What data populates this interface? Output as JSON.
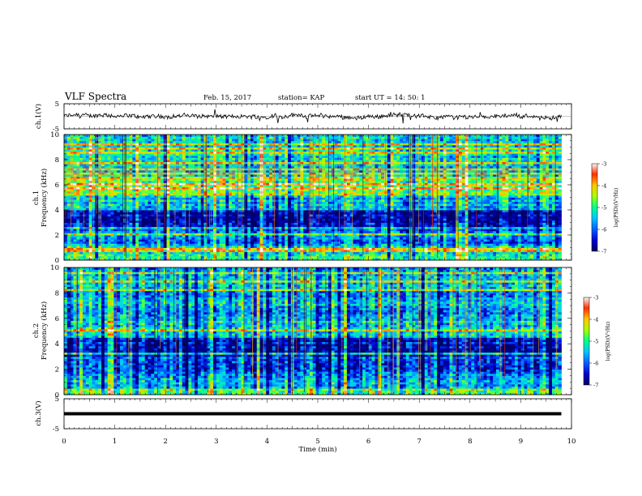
{
  "header": {
    "title": "VLF Spectra",
    "date": "Feb. 15, 2017",
    "station": "station= KAP",
    "start": "start  UT =   14: 50: 1"
  },
  "colors": {
    "ch1_trace": "#000000",
    "ch3_trace": "#000000",
    "colormap": [
      "#000066",
      "#0000d0",
      "#0060ff",
      "#00c8ff",
      "#00ff90",
      "#a8ff00",
      "#ffc800",
      "#ff3000",
      "#f8f8f8"
    ]
  },
  "chart_data": [
    {
      "type": "line",
      "name": "ch1",
      "ylabel": "ch.1(V)",
      "ylim": [
        -5,
        5
      ],
      "yticks": [
        -5,
        5
      ],
      "xlim": [
        0,
        10
      ],
      "x_extent": [
        0,
        9.8
      ],
      "approx_mean": 0,
      "approx_range": [
        -2,
        2
      ]
    },
    {
      "type": "heatmap",
      "name": "ch1 spectrum",
      "ylabel_line1": "ch.1",
      "ylabel_line2": "Frequency (kHz)",
      "ylim": [
        0,
        10
      ],
      "yticks": [
        0,
        2,
        4,
        6,
        8,
        10
      ],
      "xlim": [
        0,
        10
      ],
      "x_extent": [
        0,
        9.8
      ],
      "colorbar": {
        "label": "log(PSD)(V²/Hz)",
        "range": [
          -7,
          -3
        ],
        "ticks": [
          "-3",
          "-4",
          "-5",
          "-6",
          "-7"
        ]
      },
      "band_levels": [
        {
          "f": [
            0,
            0.3
          ],
          "level": 0.55
        },
        {
          "f": [
            0.3,
            1.2
          ],
          "level": 0.5
        },
        {
          "f": [
            1.2,
            2.5
          ],
          "level": 0.3
        },
        {
          "f": [
            2.5,
            4.0
          ],
          "level": 0.1
        },
        {
          "f": [
            4.0,
            5.2
          ],
          "level": 0.4
        },
        {
          "f": [
            5.2,
            6.5
          ],
          "level": 0.6
        },
        {
          "f": [
            6.5,
            10
          ],
          "level": 0.45
        }
      ]
    },
    {
      "type": "heatmap",
      "name": "ch2 spectrum",
      "ylabel_line1": "ch.2",
      "ylabel_line2": "Frequency (kHz)",
      "ylim": [
        0,
        10
      ],
      "yticks": [
        0,
        2,
        4,
        6,
        8,
        10
      ],
      "xlim": [
        0,
        10
      ],
      "x_extent": [
        0,
        9.8
      ],
      "colorbar": {
        "label": "log(PSD)(V²/Hz)",
        "range": [
          -7,
          -3
        ],
        "ticks": [
          "-3",
          "-4",
          "-5",
          "-6",
          "-7"
        ]
      },
      "band_levels": [
        {
          "f": [
            0,
            0.5
          ],
          "level": 0.55
        },
        {
          "f": [
            0.5,
            1.5
          ],
          "level": 0.35
        },
        {
          "f": [
            1.5,
            3.0
          ],
          "level": 0.25
        },
        {
          "f": [
            3.0,
            4.5
          ],
          "level": 0.12
        },
        {
          "f": [
            4.5,
            6.0
          ],
          "level": 0.4
        },
        {
          "f": [
            6.0,
            10
          ],
          "level": 0.35
        }
      ]
    },
    {
      "type": "line",
      "name": "ch3",
      "ylabel": "ch.3(V)",
      "ylim": [
        -5,
        5
      ],
      "yticks": [
        -5,
        5
      ],
      "xlim": [
        0,
        10
      ],
      "x_extent": [
        0,
        9.8
      ],
      "constant_value": 0,
      "xlabel": "Time (min)",
      "xticks": [
        0,
        1,
        2,
        3,
        4,
        5,
        6,
        7,
        8,
        9,
        10
      ]
    }
  ]
}
